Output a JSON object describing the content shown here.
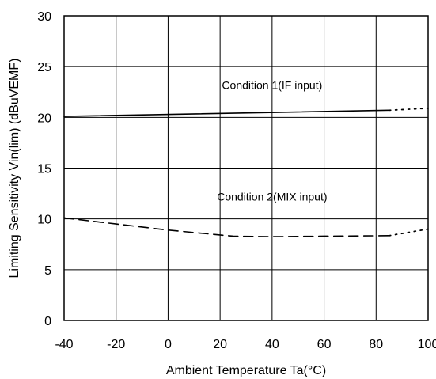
{
  "chart_data": {
    "type": "line",
    "title": "",
    "xlabel": "Ambient Temperature Ta(°C)",
    "ylabel": "Limiting Sensitivity Vin(lim) (dBuVEMF)",
    "xlim": [
      -40,
      100
    ],
    "ylim": [
      0,
      30
    ],
    "xticks": [
      -40,
      -20,
      0,
      20,
      40,
      60,
      80,
      100
    ],
    "yticks": [
      0,
      5,
      10,
      15,
      20,
      25,
      30
    ],
    "xtick_labels": [
      "-40",
      "-20",
      "0",
      "20",
      "40",
      "60",
      "80",
      "100"
    ],
    "ytick_labels": [
      "0",
      "5",
      "10",
      "15",
      "20",
      "25",
      "30"
    ],
    "grid": true,
    "annotations": [
      {
        "text": "Condition 1(IF input)",
        "x": 40,
        "y": 22.8
      },
      {
        "text": "Condition 2(MIX input)",
        "x": 40,
        "y": 11.8
      }
    ],
    "series": [
      {
        "key": "cond1-measured",
        "style": "solid",
        "x": [
          -40,
          85
        ],
        "y": [
          20.1,
          20.7
        ]
      },
      {
        "key": "cond1-extrapolated",
        "style": "dotted",
        "x": [
          85,
          100
        ],
        "y": [
          20.7,
          20.9
        ]
      },
      {
        "key": "cond2-measured",
        "style": "dashed",
        "x": [
          -40,
          -20,
          0,
          25,
          40,
          60,
          85
        ],
        "y": [
          10.1,
          9.5,
          8.9,
          8.3,
          8.25,
          8.3,
          8.35
        ]
      },
      {
        "key": "cond2-extrapolated",
        "style": "dotted",
        "x": [
          85,
          100
        ],
        "y": [
          8.35,
          9.0
        ]
      }
    ],
    "colors": {
      "line": "#000000",
      "grid": "#000000",
      "frame": "#000000",
      "background": "#ffffff"
    }
  }
}
